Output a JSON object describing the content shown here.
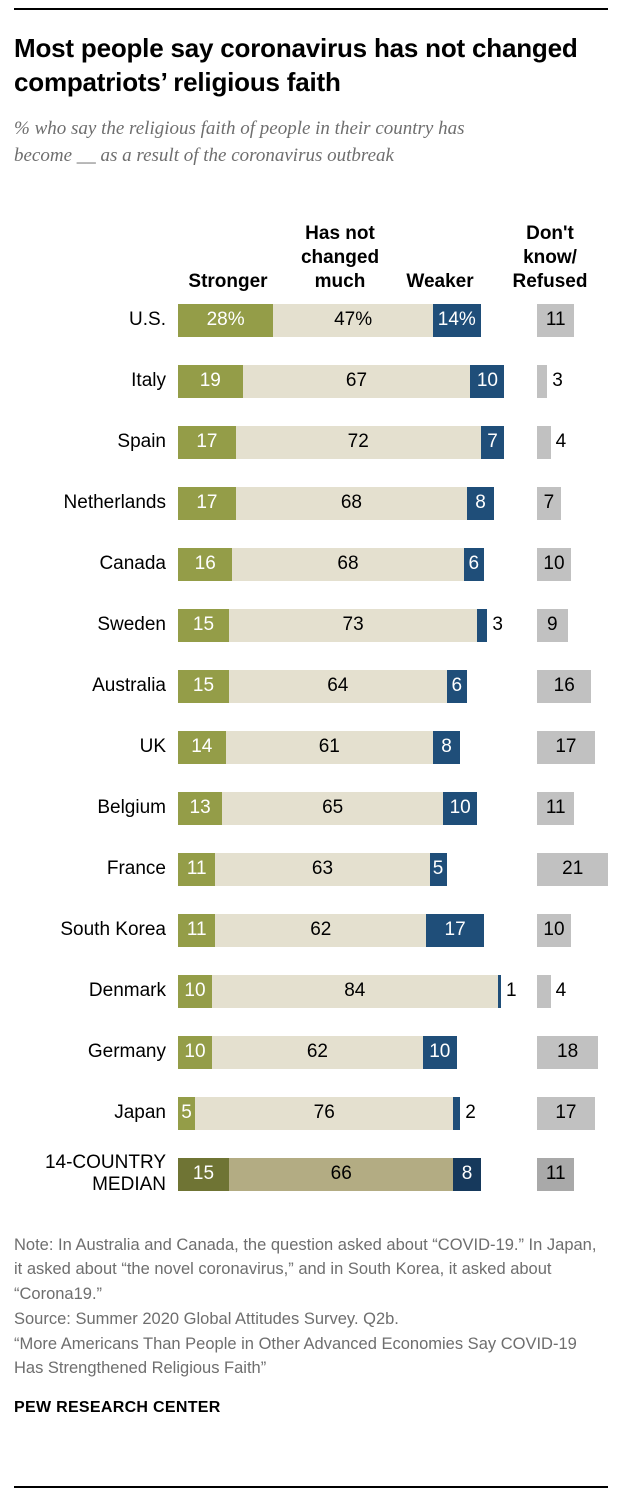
{
  "header": {
    "title": "Most people say coronavirus has not changed compatriots’ religious faith",
    "subtitle": "% who say the religious faith of people in their country has become __ as a result of the coronavirus outbreak"
  },
  "headers": {
    "stronger": "Stronger",
    "unchanged": "Has not changed much",
    "weaker": "Weaker",
    "dk": "Don't know/ Refused"
  },
  "colors": {
    "stronger": "#949d48",
    "unchanged": "#e4e0cf",
    "weaker": "#1f4e79",
    "dk": "#c1c1c1",
    "median_stronger": "#6f7434",
    "median_unchanged": "#b3ac83",
    "median_weaker": "#16395c",
    "median_dk": "#a9a9a9",
    "bar_text_light": "#ffffff",
    "bar_text_dark": "#000000"
  },
  "chart_data": {
    "type": "bar",
    "orientation": "horizontal-stacked",
    "title": "Most people say coronavirus has not changed compatriots’ religious faith",
    "subtitle": "% who say the religious faith of people in their country has become __ as a result of the coronavirus outbreak",
    "unit": "percent",
    "xlim": [
      0,
      100
    ],
    "grid": false,
    "legend_position": "top-column-headers",
    "categories": [
      "U.S.",
      "Italy",
      "Spain",
      "Netherlands",
      "Canada",
      "Sweden",
      "Australia",
      "UK",
      "Belgium",
      "France",
      "South Korea",
      "Denmark",
      "Germany",
      "Japan",
      "14-COUNTRY MEDIAN"
    ],
    "series": [
      {
        "name": "Stronger",
        "values": [
          28,
          19,
          17,
          17,
          16,
          15,
          15,
          14,
          13,
          11,
          11,
          10,
          10,
          5,
          15
        ]
      },
      {
        "name": "Has not changed much",
        "values": [
          47,
          67,
          72,
          68,
          68,
          73,
          64,
          61,
          65,
          63,
          62,
          84,
          62,
          76,
          66
        ]
      },
      {
        "name": "Weaker",
        "values": [
          14,
          10,
          7,
          8,
          6,
          3,
          6,
          8,
          10,
          5,
          17,
          1,
          10,
          2,
          8
        ]
      },
      {
        "name": "Don't know/Refused",
        "values": [
          11,
          3,
          4,
          7,
          10,
          9,
          16,
          17,
          11,
          21,
          10,
          4,
          18,
          17,
          11
        ]
      }
    ]
  },
  "rows": [
    {
      "country": "U.S.",
      "values": [
        28,
        47,
        14,
        11
      ],
      "labels": [
        "28%",
        "47%",
        "14%",
        "11"
      ],
      "median": false
    },
    {
      "country": "Italy",
      "values": [
        19,
        67,
        10,
        3
      ],
      "labels": [
        "19",
        "67",
        "10",
        "3"
      ],
      "median": false
    },
    {
      "country": "Spain",
      "values": [
        17,
        72,
        7,
        4
      ],
      "labels": [
        "17",
        "72",
        "7",
        "4"
      ],
      "median": false
    },
    {
      "country": "Netherlands",
      "values": [
        17,
        68,
        8,
        7
      ],
      "labels": [
        "17",
        "68",
        "8",
        "7"
      ],
      "median": false
    },
    {
      "country": "Canada",
      "values": [
        16,
        68,
        6,
        10
      ],
      "labels": [
        "16",
        "68",
        "6",
        "10"
      ],
      "median": false
    },
    {
      "country": "Sweden",
      "values": [
        15,
        73,
        3,
        9
      ],
      "labels": [
        "15",
        "73",
        "3",
        "9"
      ],
      "median": false
    },
    {
      "country": "Australia",
      "values": [
        15,
        64,
        6,
        16
      ],
      "labels": [
        "15",
        "64",
        "6",
        "16"
      ],
      "median": false
    },
    {
      "country": "UK",
      "values": [
        14,
        61,
        8,
        17
      ],
      "labels": [
        "14",
        "61",
        "8",
        "17"
      ],
      "median": false
    },
    {
      "country": "Belgium",
      "values": [
        13,
        65,
        10,
        11
      ],
      "labels": [
        "13",
        "65",
        "10",
        "11"
      ],
      "median": false
    },
    {
      "country": "France",
      "values": [
        11,
        63,
        5,
        21
      ],
      "labels": [
        "11",
        "63",
        "5",
        "21"
      ],
      "median": false
    },
    {
      "country": "South Korea",
      "values": [
        11,
        62,
        17,
        10
      ],
      "labels": [
        "11",
        "62",
        "17",
        "10"
      ],
      "median": false
    },
    {
      "country": "Denmark",
      "values": [
        10,
        84,
        1,
        4
      ],
      "labels": [
        "10",
        "84",
        "1",
        "4"
      ],
      "median": false
    },
    {
      "country": "Germany",
      "values": [
        10,
        62,
        10,
        18
      ],
      "labels": [
        "10",
        "62",
        "10",
        "18"
      ],
      "median": false
    },
    {
      "country": "Japan",
      "values": [
        5,
        76,
        2,
        17
      ],
      "labels": [
        "5",
        "76",
        "2",
        "17"
      ],
      "median": false
    },
    {
      "country": "14-COUNTRY MEDIAN",
      "values": [
        15,
        66,
        8,
        11
      ],
      "labels": [
        "15",
        "66",
        "8",
        "11"
      ],
      "median": true
    }
  ],
  "footer": {
    "note": "Note: In Australia and Canada, the question asked about “COVID-19.” In Japan, it asked about “the novel coronavirus,” and in South Korea, it asked about “Corona19.”",
    "source": "Source: Summer 2020 Global Attitudes Survey. Q2b.",
    "report": "“More Americans Than People in Other Advanced Economies Say COVID-19 Has Strengthened Religious Faith”",
    "brand": "PEW RESEARCH CENTER"
  }
}
